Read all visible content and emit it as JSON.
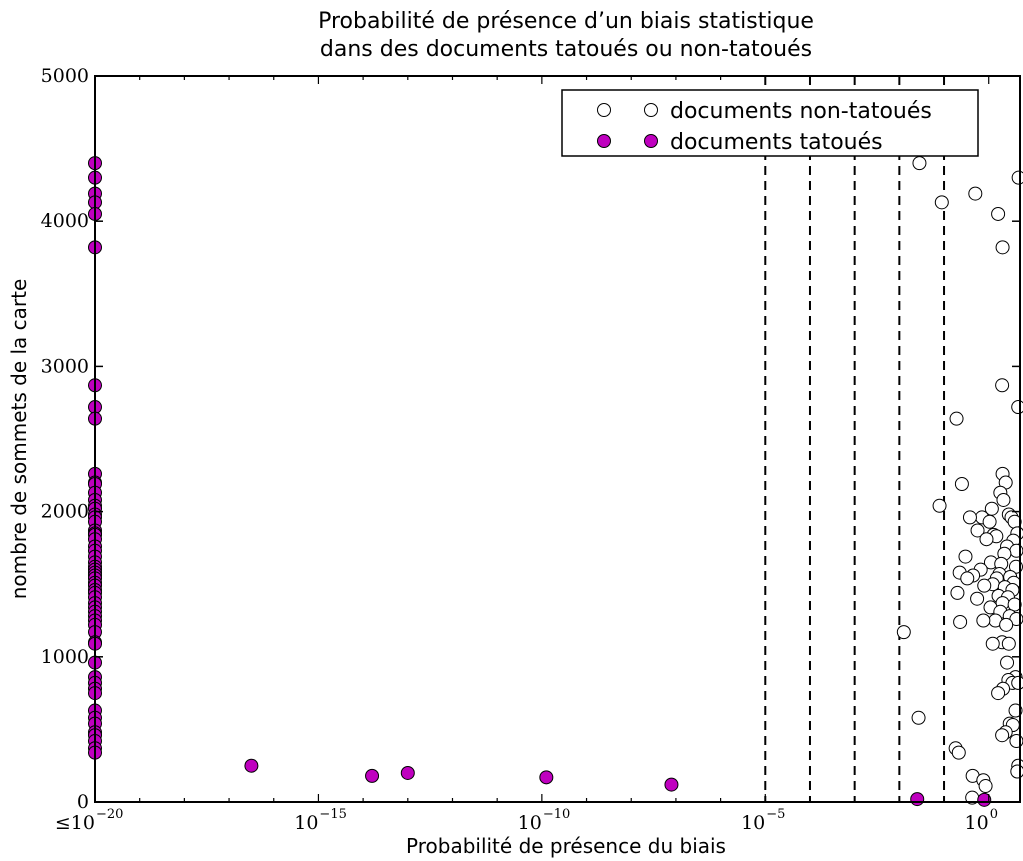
{
  "chart_data": {
    "type": "scatter",
    "title": [
      "Probabilité de présence d’un biais statistique",
      "dans des documents tatoués ou non-tatoués"
    ],
    "xlabel": "Probabilité de présence du biais",
    "ylabel": "nombre de sommets de la carte",
    "x_scale": "log",
    "x_exponent_range": [
      -20,
      0.7
    ],
    "ylim": [
      0,
      5000
    ],
    "x_ticks": [
      {
        "exp": -20,
        "prefix": "≤",
        "base": "10",
        "sup": "−20"
      },
      {
        "exp": -15,
        "prefix": "",
        "base": "10",
        "sup": "−15"
      },
      {
        "exp": -10,
        "prefix": "",
        "base": "10",
        "sup": "−10"
      },
      {
        "exp": -5,
        "prefix": "",
        "base": "10",
        "sup": "−5"
      },
      {
        "exp": 0,
        "prefix": "",
        "base": "10",
        "sup": "0"
      }
    ],
    "y_ticks": [
      "0",
      "1000",
      "2000",
      "3000",
      "4000",
      "5000"
    ],
    "threshold_exponents": [
      -5,
      -4,
      -3,
      -2,
      -1
    ],
    "legend": {
      "placement": "top-right"
    },
    "series": [
      {
        "name": "documents non-tatoués",
        "color": "#ffffff",
        "edge": "#000000",
        "points": [
          [
            -1.55,
            4400
          ],
          [
            0.67,
            4300
          ],
          [
            -0.3,
            4190
          ],
          [
            -1.05,
            4130
          ],
          [
            0.21,
            4050
          ],
          [
            0.31,
            3820
          ],
          [
            0.3,
            2870
          ],
          [
            0.66,
            2720
          ],
          [
            -0.72,
            2640
          ],
          [
            -0.6,
            2190
          ],
          [
            0.31,
            2260
          ],
          [
            0.38,
            2200
          ],
          [
            0.26,
            2130
          ],
          [
            0.33,
            2080
          ],
          [
            -1.1,
            2040
          ],
          [
            0.07,
            2020
          ],
          [
            0.45,
            1980
          ],
          [
            -0.15,
            1960
          ],
          [
            0.51,
            1960
          ],
          [
            -0.42,
            1960
          ],
          [
            0.02,
            1930
          ],
          [
            0.58,
            1930
          ],
          [
            -0.25,
            1870
          ],
          [
            0.64,
            1850
          ],
          [
            0.11,
            1840
          ],
          [
            0.17,
            1830
          ],
          [
            -0.05,
            1810
          ],
          [
            0.55,
            1800
          ],
          [
            0.41,
            1760
          ],
          [
            0.62,
            1730
          ],
          [
            0.35,
            1710
          ],
          [
            -0.52,
            1690
          ],
          [
            0.05,
            1650
          ],
          [
            0.28,
            1640
          ],
          [
            0.61,
            1620
          ],
          [
            -0.18,
            1600
          ],
          [
            0.24,
            1570
          ],
          [
            -0.65,
            1580
          ],
          [
            -0.35,
            1560
          ],
          [
            0.48,
            1550
          ],
          [
            0.18,
            1540
          ],
          [
            -0.48,
            1540
          ],
          [
            0.56,
            1510
          ],
          [
            0.09,
            1500
          ],
          [
            -0.1,
            1490
          ],
          [
            0.36,
            1480
          ],
          [
            0.53,
            1460
          ],
          [
            -0.7,
            1440
          ],
          [
            0.22,
            1420
          ],
          [
            0.43,
            1410
          ],
          [
            -0.26,
            1400
          ],
          [
            0.31,
            1370
          ],
          [
            0.58,
            1360
          ],
          [
            0.04,
            1340
          ],
          [
            0.26,
            1310
          ],
          [
            0.47,
            1280
          ],
          [
            0.62,
            1260
          ],
          [
            0.15,
            1250
          ],
          [
            -0.64,
            1240
          ],
          [
            -0.12,
            1250
          ],
          [
            0.39,
            1220
          ],
          [
            -1.9,
            1170
          ],
          [
            0.3,
            1100
          ],
          [
            0.09,
            1090
          ],
          [
            0.45,
            1090
          ],
          [
            0.41,
            960
          ],
          [
            0.6,
            860
          ],
          [
            0.44,
            840
          ],
          [
            0.53,
            820
          ],
          [
            0.32,
            780
          ],
          [
            0.66,
            820
          ],
          [
            0.21,
            750
          ],
          [
            0.6,
            630
          ],
          [
            0.47,
            540
          ],
          [
            0.54,
            530
          ],
          [
            -1.57,
            580
          ],
          [
            0.38,
            480
          ],
          [
            0.3,
            460
          ],
          [
            0.62,
            420
          ],
          [
            -0.74,
            370
          ],
          [
            -0.67,
            340
          ],
          [
            0.66,
            250
          ],
          [
            -0.36,
            180
          ],
          [
            -0.12,
            150
          ],
          [
            0.64,
            210
          ],
          [
            -0.07,
            110
          ],
          [
            -0.37,
            30
          ]
        ]
      },
      {
        "name": "documents tatoués",
        "color": "#bf00bf",
        "edge": "#000000",
        "points": [
          [
            -20,
            4400
          ],
          [
            -20,
            4300
          ],
          [
            -20,
            4190
          ],
          [
            -20,
            4130
          ],
          [
            -20,
            4050
          ],
          [
            -20,
            3820
          ],
          [
            -20,
            2870
          ],
          [
            -20,
            2720
          ],
          [
            -20,
            2640
          ],
          [
            -20,
            2260
          ],
          [
            -20,
            2200
          ],
          [
            -20,
            2190
          ],
          [
            -20,
            2130
          ],
          [
            -20,
            2080
          ],
          [
            -20,
            2040
          ],
          [
            -20,
            2020
          ],
          [
            -20,
            1980
          ],
          [
            -20,
            1960
          ],
          [
            -20,
            1930
          ],
          [
            -20,
            1870
          ],
          [
            -20,
            1850
          ],
          [
            -20,
            1840
          ],
          [
            -20,
            1810
          ],
          [
            -20,
            1760
          ],
          [
            -20,
            1730
          ],
          [
            -20,
            1690
          ],
          [
            -20,
            1650
          ],
          [
            -20,
            1620
          ],
          [
            -20,
            1600
          ],
          [
            -20,
            1580
          ],
          [
            -20,
            1560
          ],
          [
            -20,
            1540
          ],
          [
            -20,
            1510
          ],
          [
            -20,
            1490
          ],
          [
            -20,
            1460
          ],
          [
            -20,
            1440
          ],
          [
            -20,
            1410
          ],
          [
            -20,
            1370
          ],
          [
            -20,
            1340
          ],
          [
            -20,
            1310
          ],
          [
            -20,
            1280
          ],
          [
            -20,
            1250
          ],
          [
            -20,
            1220
          ],
          [
            -20,
            1170
          ],
          [
            -20,
            1100
          ],
          [
            -20,
            1090
          ],
          [
            -20,
            960
          ],
          [
            -20,
            860
          ],
          [
            -20,
            820
          ],
          [
            -20,
            780
          ],
          [
            -20,
            750
          ],
          [
            -20,
            630
          ],
          [
            -20,
            580
          ],
          [
            -20,
            540
          ],
          [
            -20,
            480
          ],
          [
            -20,
            460
          ],
          [
            -20,
            420
          ],
          [
            -20,
            370
          ],
          [
            -20,
            340
          ],
          [
            -16.5,
            250
          ],
          [
            -13.8,
            180
          ],
          [
            -13.0,
            200
          ],
          [
            -9.9,
            170
          ],
          [
            -7.1,
            120
          ],
          [
            -1.6,
            20
          ],
          [
            -0.1,
            15
          ]
        ]
      }
    ]
  }
}
